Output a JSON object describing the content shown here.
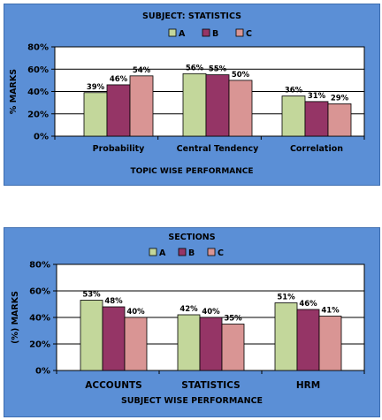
{
  "chart_data": [
    {
      "type": "bar",
      "title": "SUBJECT: STATISTICS",
      "xlabel": "TOPIC WISE PERFORMANCE",
      "ylabel": "% MARKS",
      "ylim": [
        0,
        80
      ],
      "y_ticks": [
        "0%",
        "20%",
        "40%",
        "60%",
        "80%"
      ],
      "y_tick_values": [
        0,
        20,
        40,
        60,
        80
      ],
      "legend_placement": "top-center",
      "grid": true,
      "categories": [
        "Probability",
        "Central Tendency",
        "Correlation"
      ],
      "series": [
        {
          "name": "A",
          "color": "#c3d79b",
          "values": [
            39,
            56,
            36
          ],
          "labels": [
            "39%",
            "56%",
            "36%"
          ]
        },
        {
          "name": "B",
          "color": "#953566",
          "values": [
            46,
            55,
            31
          ],
          "labels": [
            "46%",
            "55%",
            "31%"
          ]
        },
        {
          "name": "C",
          "color": "#d99594",
          "values": [
            54,
            50,
            29
          ],
          "labels": [
            "54%",
            "50%",
            "29%"
          ]
        }
      ]
    },
    {
      "type": "bar",
      "title": "SECTIONS",
      "xlabel": "SUBJECT WISE PERFORMANCE",
      "ylabel": "(%) MARKS",
      "ylim": [
        0,
        80
      ],
      "y_ticks": [
        "0%",
        "20%",
        "40%",
        "60%",
        "80%"
      ],
      "y_tick_values": [
        0,
        20,
        40,
        60,
        80
      ],
      "legend_placement": "top-center",
      "grid": true,
      "categories": [
        "ACCOUNTS",
        "STATISTICS",
        "HRM"
      ],
      "series": [
        {
          "name": "A",
          "color": "#c3d79b",
          "values": [
            53,
            42,
            51
          ],
          "labels": [
            "53%",
            "42%",
            "51%"
          ]
        },
        {
          "name": "B",
          "color": "#953566",
          "values": [
            48,
            40,
            46
          ],
          "labels": [
            "48%",
            "40%",
            "46%"
          ]
        },
        {
          "name": "C",
          "color": "#d99594",
          "values": [
            40,
            35,
            41
          ],
          "labels": [
            "40%",
            "35%",
            "41%"
          ]
        }
      ]
    }
  ]
}
